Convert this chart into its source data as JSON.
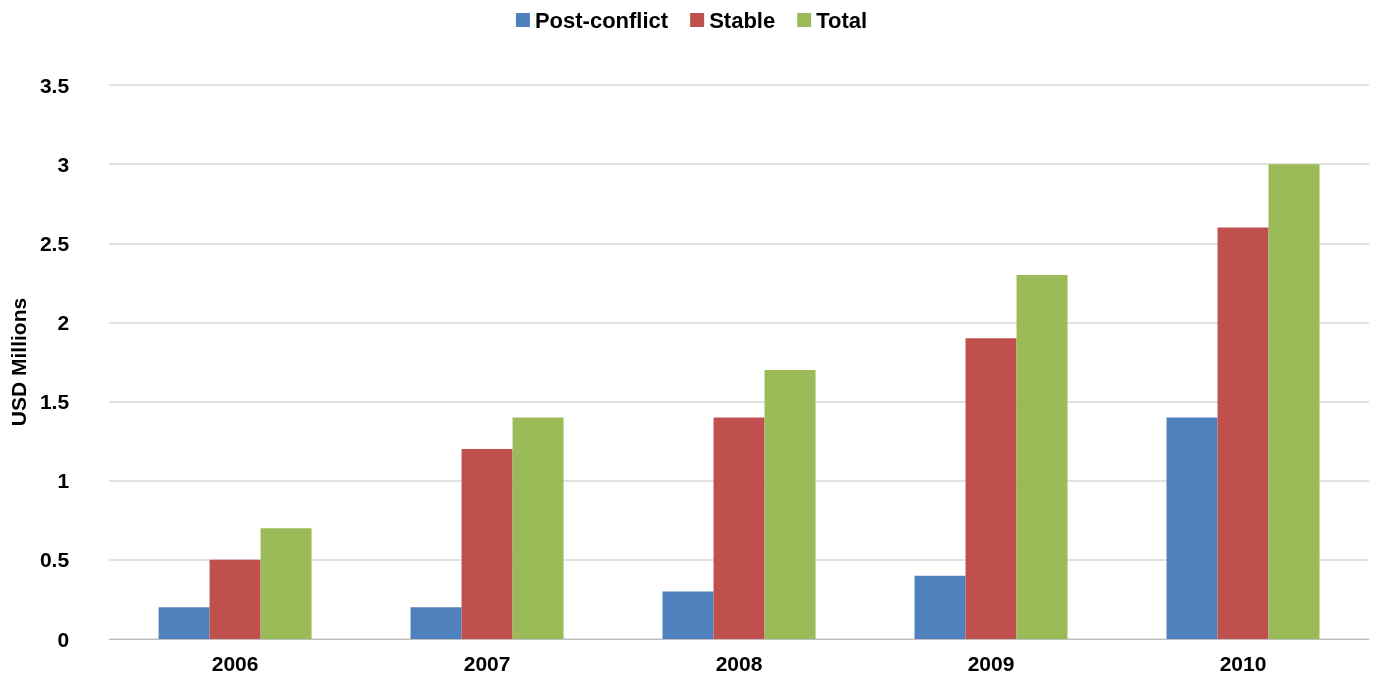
{
  "chart_data": {
    "type": "bar",
    "ylabel": "USD Millions",
    "categories": [
      "2006",
      "2007",
      "2008",
      "2009",
      "2010"
    ],
    "series": [
      {
        "name": "Post-conflict",
        "color": "#4f81bd",
        "values": [
          0.2,
          0.2,
          0.3,
          0.4,
          1.4
        ]
      },
      {
        "name": "Stable",
        "color": "#c0504d",
        "values": [
          0.5,
          1.2,
          1.4,
          1.9,
          2.6
        ]
      },
      {
        "name": "Total",
        "color": "#9bbb59",
        "values": [
          0.7,
          1.4,
          1.7,
          2.3,
          3.0
        ]
      }
    ],
    "ylim": [
      0,
      3.5
    ],
    "yticks": [
      0,
      0.5,
      1,
      1.5,
      2,
      2.5,
      3,
      3.5
    ],
    "grid": "y",
    "legend": "top"
  }
}
